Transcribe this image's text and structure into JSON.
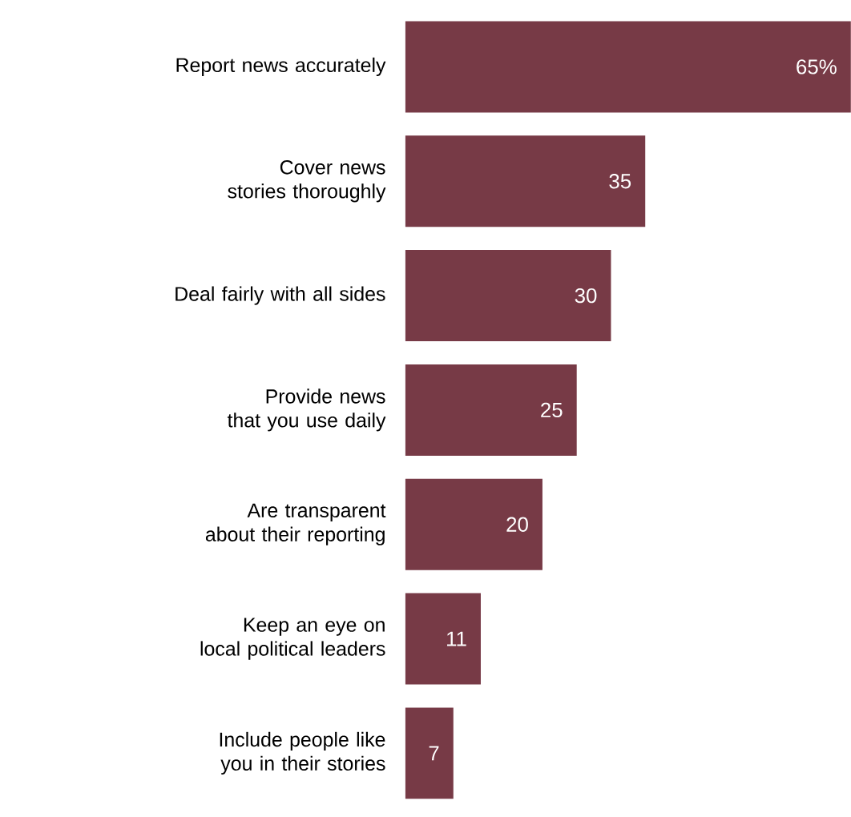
{
  "chart_data": {
    "type": "bar",
    "orientation": "horizontal",
    "categories": [
      "Report news accurately",
      "Cover news stories thoroughly",
      "Deal fairly with all sides",
      "Provide news that you use daily",
      "Are transparent about their reporting",
      "Keep an eye on local political leaders",
      "Include people like you in their stories"
    ],
    "values": [
      65,
      35,
      30,
      25,
      20,
      11,
      7
    ],
    "value_labels": [
      "65%",
      "35",
      "30",
      "25",
      "20",
      "11",
      "7"
    ],
    "color": "#773a46",
    "xlim": [
      0,
      65
    ]
  }
}
